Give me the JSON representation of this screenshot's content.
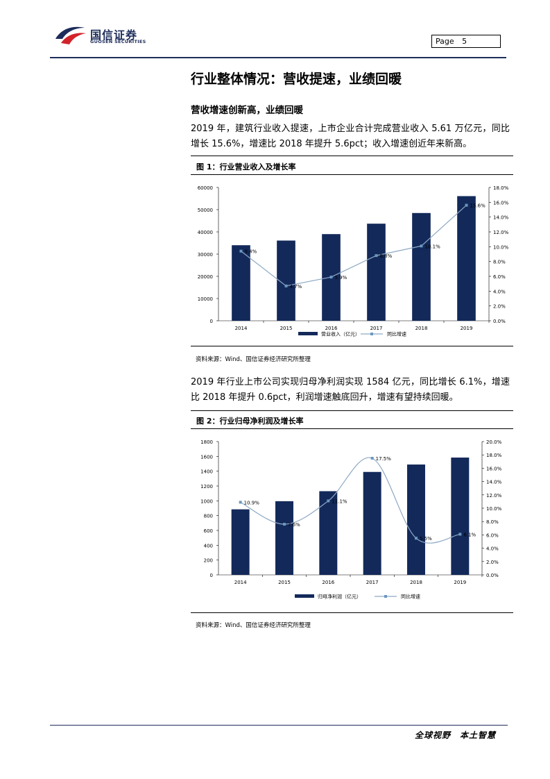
{
  "header": {
    "logo_cn": "国信证券",
    "logo_en": "GUOSEN SECURITIES",
    "page_label": "Page",
    "page_number": "5"
  },
  "section_title": "行业整体情况：营收提速，业绩回暖",
  "subsection_title": "营收增速创新高，业绩回暖",
  "paragraph1": "2019 年，建筑行业收入提速，上市企业合计完成营业收入 5.61 万亿元，同比增长 15.6%，增速比 2018 年提升 5.6pct；收入增速创近年来新高。",
  "paragraph2": "2019 年行业上市公司实现归母净利润实现 1584 亿元，同比增长 6.1%，增速比 2018 年提升 0.6pct，利润增速触底回升，增速有望持续回暖。",
  "figure1_title": "图 1：行业营业收入及增长率",
  "figure2_title": "图 2：行业归母净利润及增长率",
  "source1": "资料来源：Wind、国信证券经济研究所整理",
  "source2": "资料来源：Wind、国信证券经济研究所整理",
  "footer_slogan": "全球视野　本土智慧",
  "colors": {
    "bar": "#13295a",
    "line": "#8ea9c4",
    "marker": "#6a98c0",
    "navy_rule": "#1d2c5a"
  },
  "chart_data": [
    {
      "type": "bar",
      "categories": [
        "2014",
        "2015",
        "2016",
        "2017",
        "2018",
        "2019"
      ],
      "series": [
        {
          "name": "营业收入（亿元）",
          "type": "bar",
          "axis": "left",
          "values": [
            34000,
            36100,
            39000,
            43700,
            48500,
            56100
          ]
        },
        {
          "name": "同比增速",
          "type": "line",
          "axis": "right",
          "values": [
            9.4,
            4.7,
            5.9,
            8.8,
            10.1,
            15.6
          ]
        }
      ],
      "point_labels": [
        "9.4%",
        "4.7%",
        "5.9%",
        "8.8%",
        "10.1%",
        "15.6%"
      ],
      "left_ticks": [
        "0",
        "10000",
        "20000",
        "30000",
        "40000",
        "50000",
        "60000"
      ],
      "right_ticks": [
        "0.0%",
        "2.0%",
        "4.0%",
        "6.0%",
        "8.0%",
        "10.0%",
        "12.0%",
        "14.0%",
        "16.0%",
        "18.0%"
      ],
      "ylim_left": [
        0,
        60000
      ],
      "ylim_right": [
        0,
        18
      ],
      "legend_position": "bottom",
      "smooth": false
    },
    {
      "type": "bar",
      "categories": [
        "2014",
        "2015",
        "2016",
        "2017",
        "2018",
        "2019"
      ],
      "series": [
        {
          "name": "归母净利润（亿元）",
          "type": "bar",
          "axis": "left",
          "values": [
            885,
            995,
            1130,
            1390,
            1490,
            1584
          ]
        },
        {
          "name": "同比增速",
          "type": "line",
          "axis": "right",
          "values": [
            10.9,
            7.6,
            11.1,
            17.5,
            5.5,
            6.1
          ]
        }
      ],
      "point_labels": [
        "10.9%",
        "7.6%",
        "11.1%",
        "17.5%",
        "5.5%",
        "6.1%"
      ],
      "left_ticks": [
        "0",
        "200",
        "400",
        "600",
        "800",
        "1000",
        "1200",
        "1400",
        "1600",
        "1800"
      ],
      "right_ticks": [
        "0.0%",
        "2.0%",
        "4.0%",
        "6.0%",
        "8.0%",
        "10.0%",
        "12.0%",
        "14.0%",
        "16.0%",
        "18.0%",
        "20.0%"
      ],
      "ylim_left": [
        0,
        1800
      ],
      "ylim_right": [
        0,
        20
      ],
      "legend_position": "bottom",
      "smooth": true
    }
  ]
}
